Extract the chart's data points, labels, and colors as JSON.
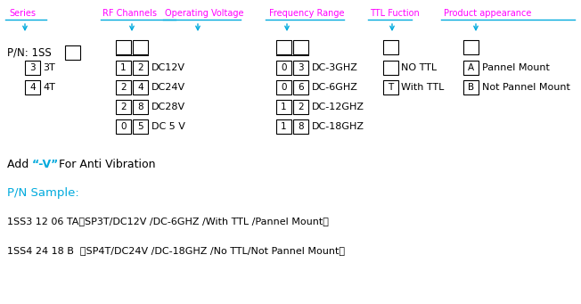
{
  "bg_color": "#ffffff",
  "magenta": "#FF00FF",
  "cyan": "#00AADD",
  "black": "#000000",
  "header_labels": [
    "Series",
    "RF Channels",
    "Operating Voltage",
    "Frequency Range",
    "TTL Fuction",
    "Product appearance"
  ],
  "add_vibration_prefix": "Add ",
  "add_vibration_cyan": "“-V”",
  "add_vibration_suffix": " For Anti Vibration",
  "pn_sample": "P/N Sample:",
  "sample1": "1SS3 12 06 TA（SP3T/DC12V /DC-6GHZ /With TTL /Pannel Mount）",
  "sample2": "1SS4 24 18 B  （SP4T/DC24V /DC-18GHZ /No TTL/Not Pannel Mount）"
}
